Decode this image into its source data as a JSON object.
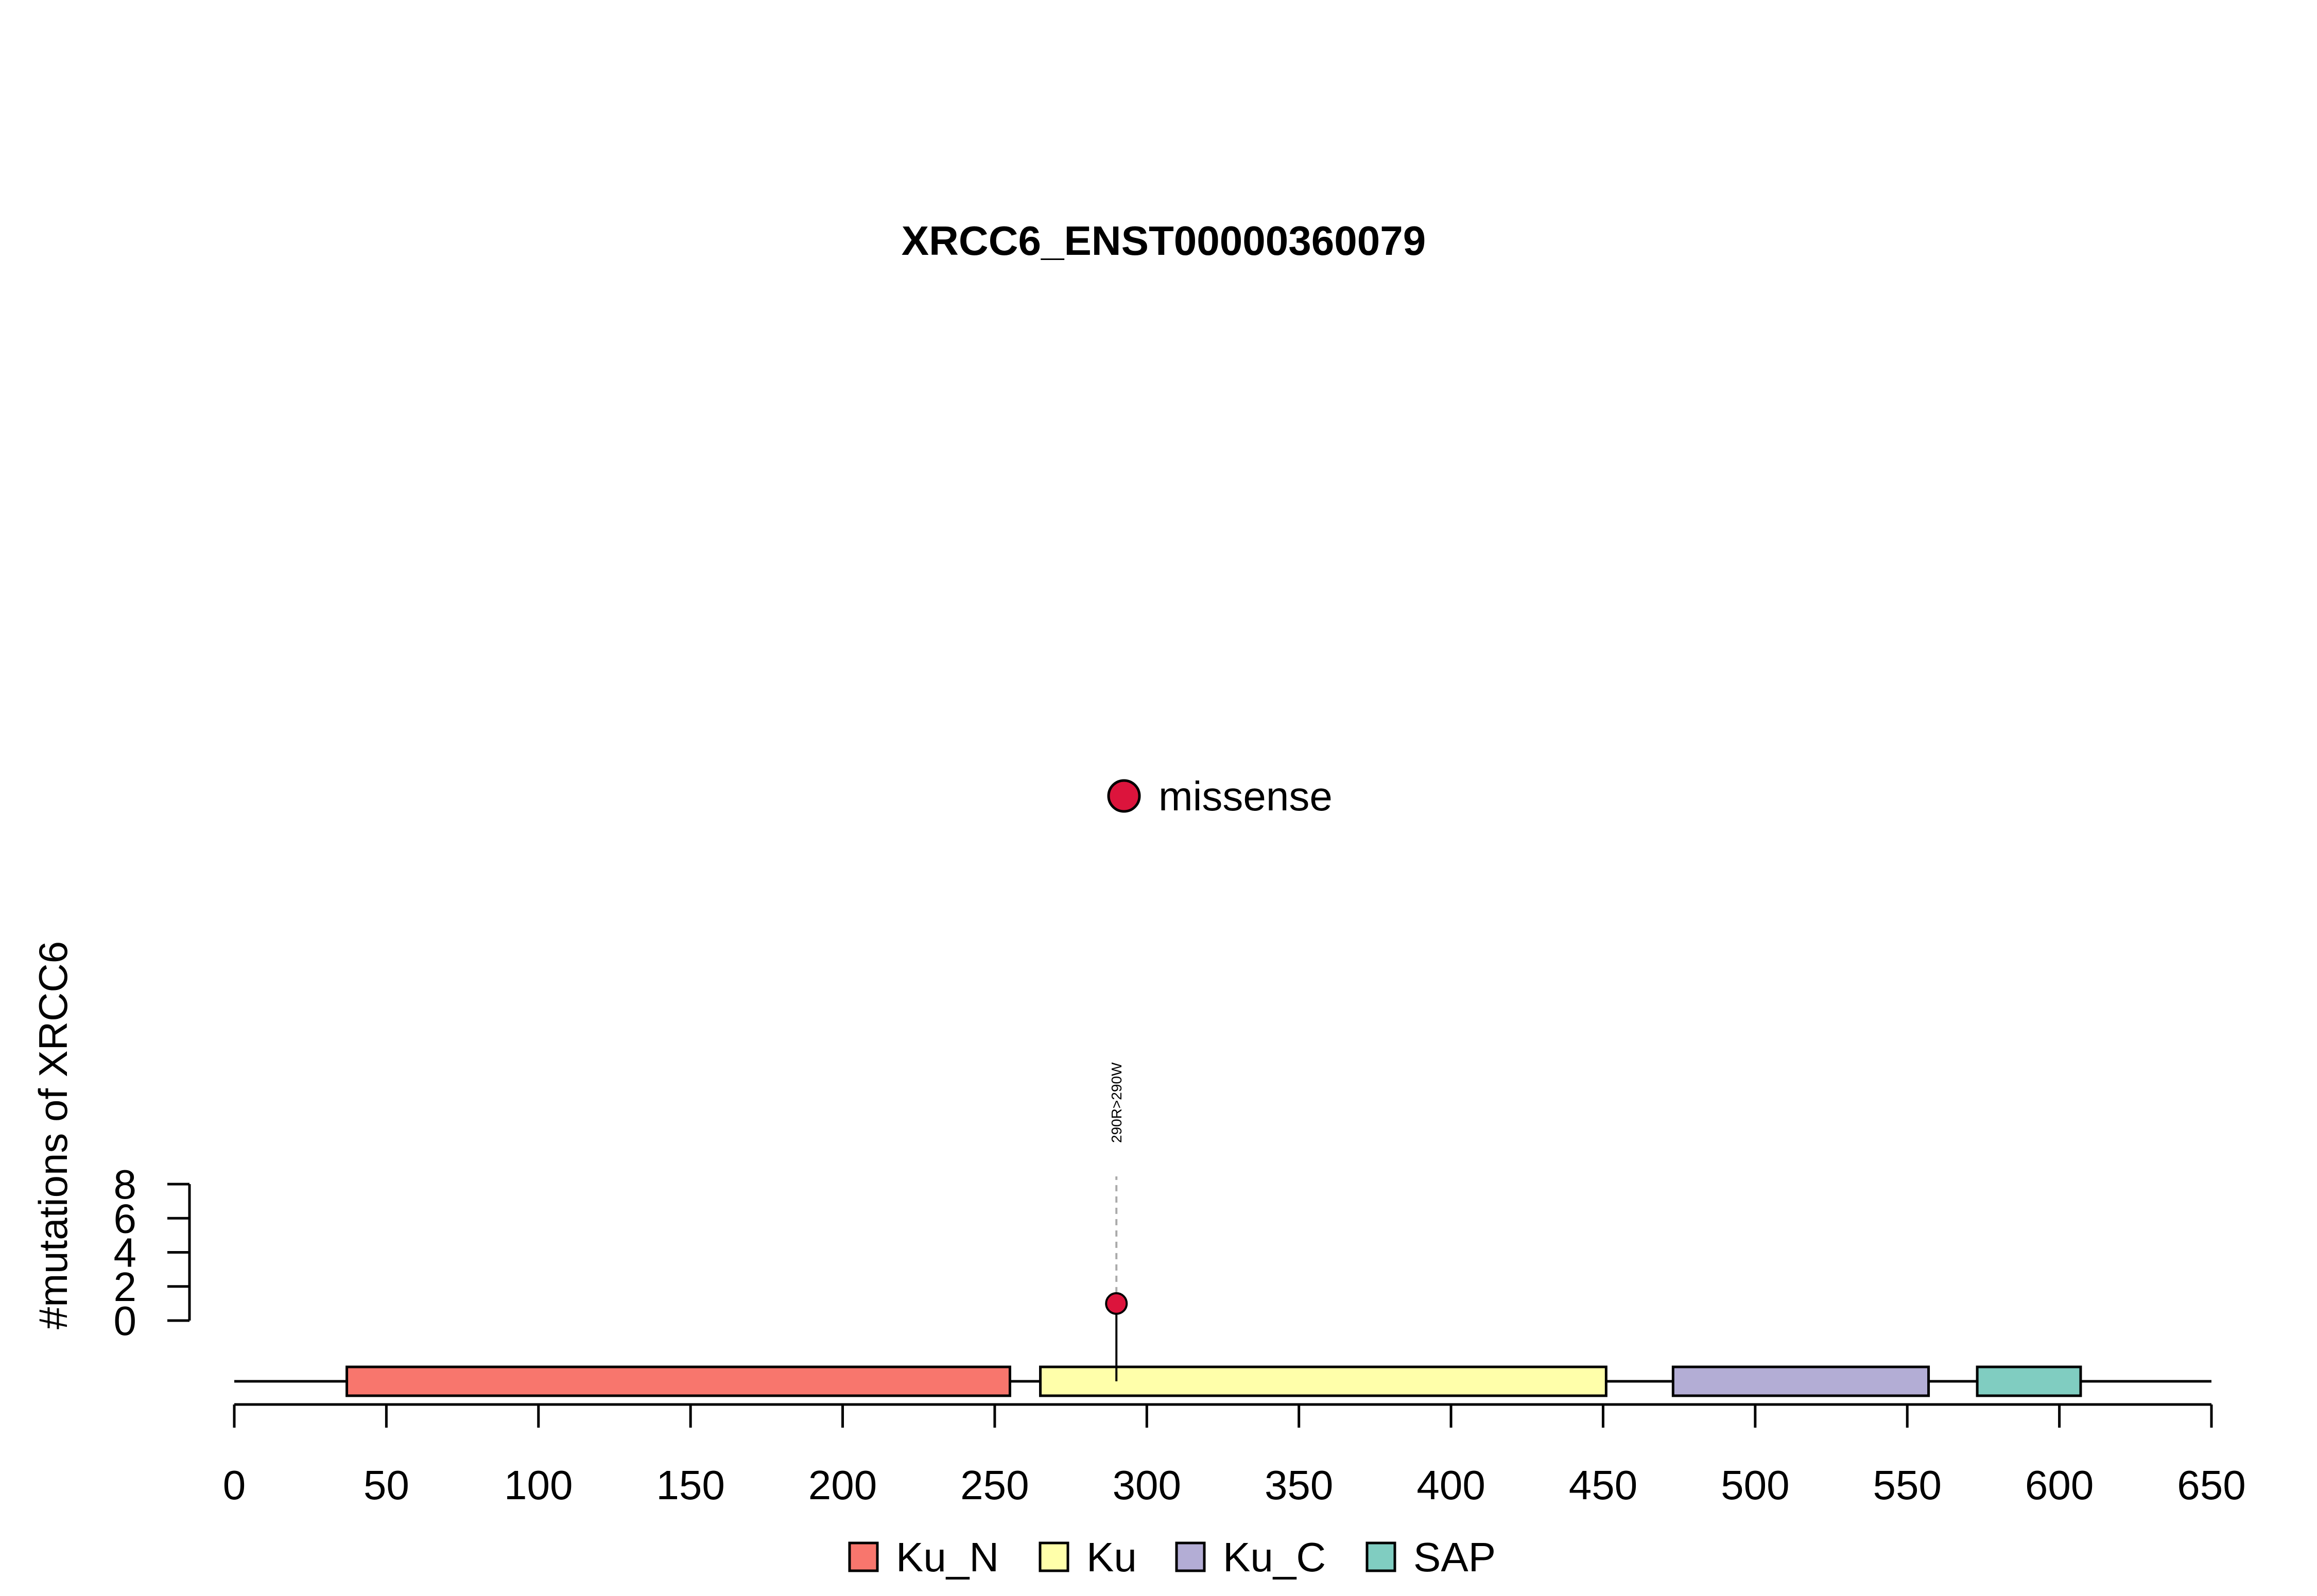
{
  "chart_data": {
    "type": "lollipop",
    "title": "XRCC6_ENST00000360079",
    "ylabel": "#mutations of XRCC6",
    "xlabel": "",
    "xlim": [
      0,
      650
    ],
    "ylim": [
      0,
      8
    ],
    "x_ticks": [
      0,
      50,
      100,
      150,
      200,
      250,
      300,
      350,
      400,
      450,
      500,
      550,
      600,
      650
    ],
    "y_ticks": [
      0,
      2,
      4,
      6,
      8
    ],
    "protein_length": 609,
    "domains": [
      {
        "name": "Ku_N",
        "start": 37,
        "end": 255,
        "color": "#F8766D"
      },
      {
        "name": "Ku",
        "start": 265,
        "end": 451,
        "color": "#FFFFAA"
      },
      {
        "name": "Ku_C",
        "start": 473,
        "end": 557,
        "color": "#B3ADD5"
      },
      {
        "name": "SAP",
        "start": 573,
        "end": 607,
        "color": "#80CDC1"
      }
    ],
    "mutations": [
      {
        "position": 290,
        "count": 1,
        "label": "290R>290W",
        "type": "missense",
        "color": "#DC143C"
      }
    ],
    "mutation_legend": [
      {
        "label": "missense",
        "color": "#DC143C"
      }
    ],
    "domain_legend": [
      "Ku_N",
      "Ku",
      "Ku_C",
      "SAP"
    ],
    "legend_position": "bottom"
  }
}
